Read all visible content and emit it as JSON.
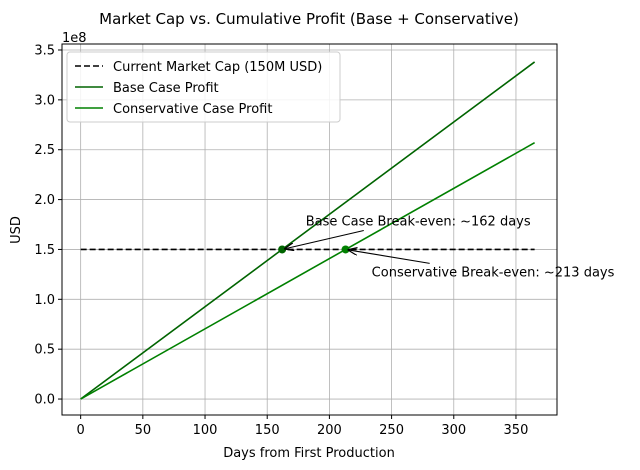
{
  "chart_data": {
    "type": "line",
    "title": "Market Cap vs. Cumulative Profit (Base + Conservative)",
    "xlabel": "Days from First Production",
    "ylabel": "USD",
    "y_offset_label": "1e8",
    "xlim": [
      -15,
      383
    ],
    "ylim": [
      -16000000,
      356000000
    ],
    "x_ticks": [
      0,
      50,
      100,
      150,
      200,
      250,
      300,
      350
    ],
    "x_tick_labels": [
      "0",
      "50",
      "100",
      "150",
      "200",
      "250",
      "300",
      "350"
    ],
    "y_ticks": [
      0,
      50000000,
      100000000,
      150000000,
      200000000,
      250000000,
      300000000,
      350000000
    ],
    "y_tick_labels": [
      "0.0",
      "0.5",
      "1.0",
      "1.5",
      "2.0",
      "2.5",
      "3.0",
      "3.5"
    ],
    "grid": true,
    "legend_position": "top-left",
    "series": [
      {
        "name": "Current Market Cap (150M USD)",
        "style": "dashed",
        "color": "#000000",
        "x": [
          0,
          365
        ],
        "y": [
          150000000,
          150000000
        ]
      },
      {
        "name": "Base Case Profit",
        "style": "solid",
        "color": "#006400",
        "x": [
          0,
          365
        ],
        "y": [
          0,
          338000000
        ]
      },
      {
        "name": "Conservative Case Profit",
        "style": "solid",
        "color": "#008000",
        "x": [
          0,
          365
        ],
        "y": [
          0,
          257000000
        ]
      }
    ],
    "points": [
      {
        "x": 162,
        "y": 150000000,
        "color": "#006400"
      },
      {
        "x": 213,
        "y": 150000000,
        "color": "#008000"
      }
    ],
    "annotations": [
      {
        "text": "Base Case Break-even: ~162 days",
        "x": 162,
        "y": 150000000,
        "text_x": 181,
        "text_y": 174000000,
        "align": "start"
      },
      {
        "text": "Conservative Break-even: ~213 days",
        "x": 213,
        "y": 150000000,
        "text_x": 234,
        "text_y": 123000000,
        "align": "start"
      }
    ]
  }
}
